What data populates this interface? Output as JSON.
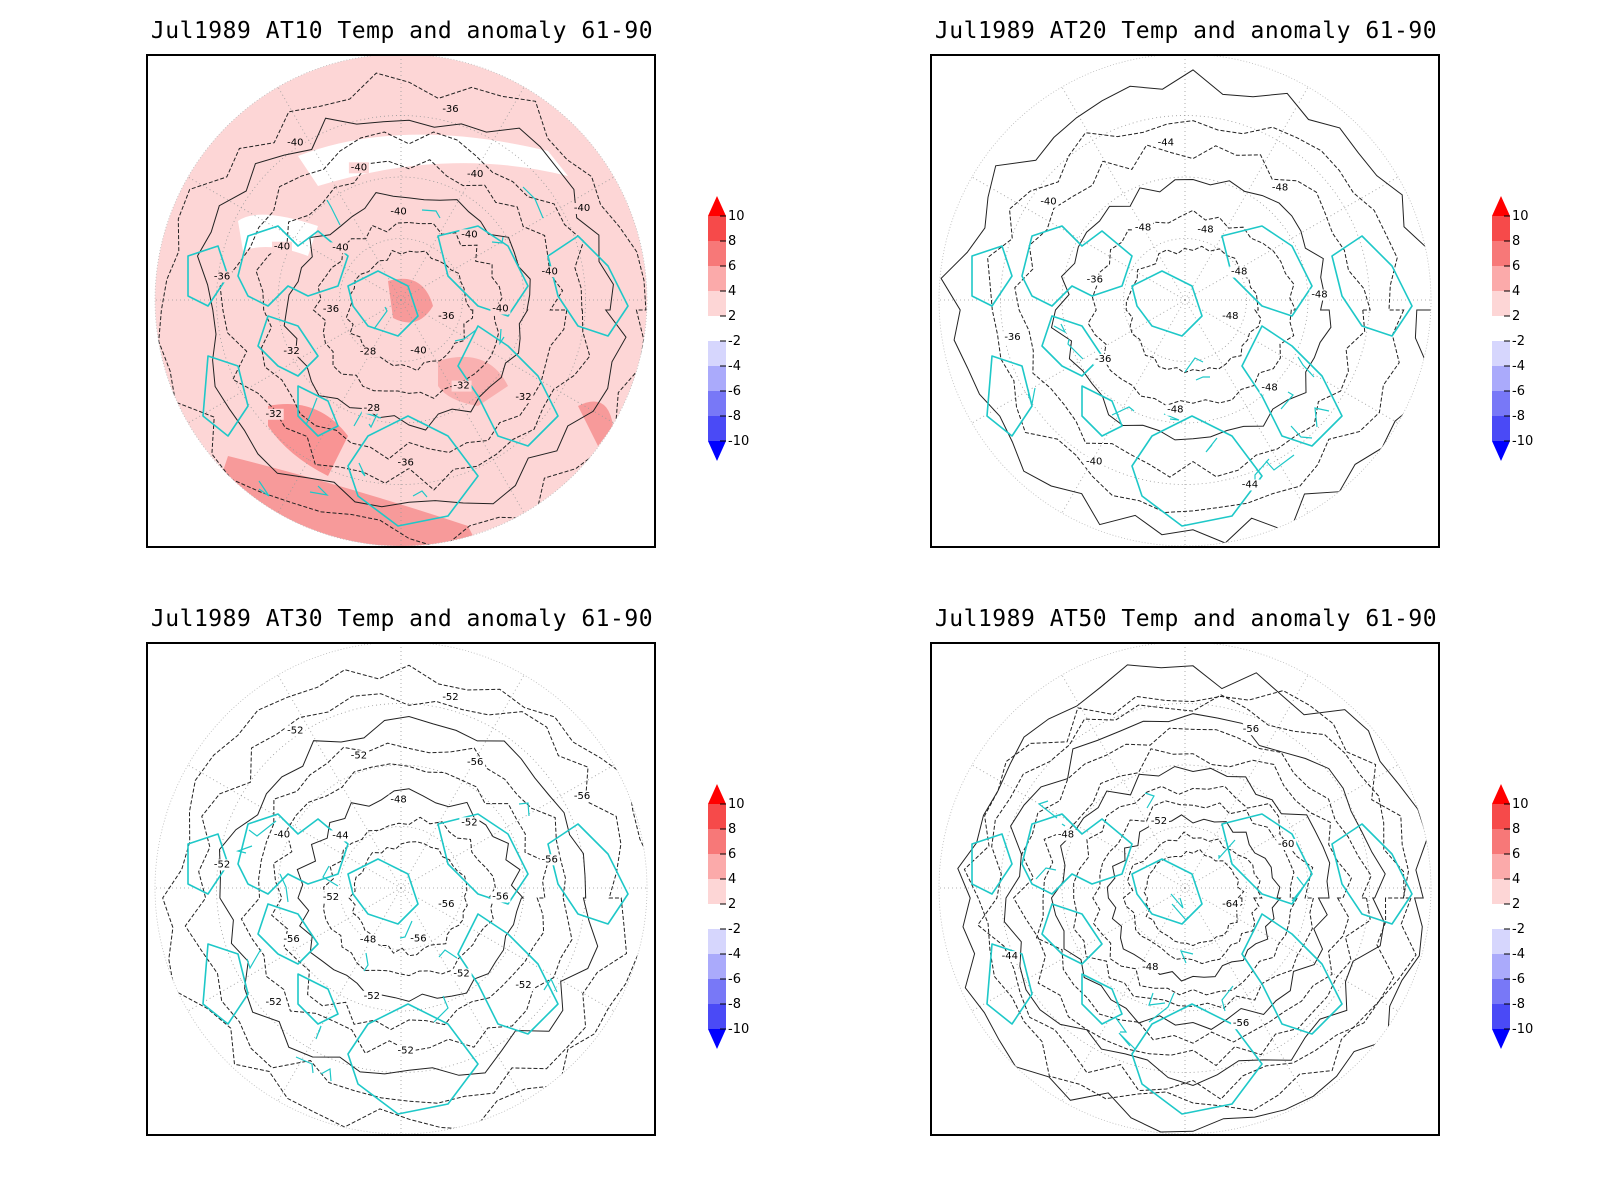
{
  "panels": [
    {
      "title": "Jul1989 AT10 Temp and anomaly 61-90",
      "anomaly": true,
      "contour_labels": [
        "-36",
        "-32",
        "-32",
        "-40",
        "-36",
        "-28",
        "-28",
        "-32",
        "-32",
        "-36",
        "-36",
        "-40",
        "-40",
        "-40",
        "-40",
        "-40",
        "-36",
        "-40",
        "-40",
        "-40",
        "-40",
        "-40"
      ]
    },
    {
      "title": "Jul1989 AT20 Temp and anomaly 61-90",
      "anomaly": false,
      "contour_labels": [
        "-48",
        "-48",
        "-44",
        "-48",
        "-40",
        "-36",
        "-36",
        "-36",
        "-40",
        "-48",
        "-44",
        "-48",
        "-48",
        "-48",
        "-48"
      ]
    },
    {
      "title": "Jul1989 AT30 Temp and anomaly 61-90",
      "anomaly": false,
      "contour_labels": [
        "-56",
        "-52",
        "-52",
        "-56",
        "-52",
        "-52",
        "-48",
        "-52",
        "-56",
        "-52",
        "-52",
        "-40",
        "-44",
        "-52",
        "-52",
        "-48",
        "-52",
        "-56",
        "-52",
        "-56",
        "-56",
        "-56"
      ]
    },
    {
      "title": "Jul1989 AT50 Temp and anomaly 61-90",
      "anomaly": false,
      "contour_labels": [
        "-64",
        "-56",
        "-48",
        "-44",
        "-48",
        "-52",
        "-56",
        "-60"
      ]
    }
  ],
  "colorbar": {
    "ticks": [
      "10",
      "8",
      "6",
      "4",
      "2",
      "-2",
      "-4",
      "-6",
      "-8",
      "-10"
    ],
    "colors": [
      "#ff0000",
      "#f64a4a",
      "#f77878",
      "#fbaaaa",
      "#fdd6d6",
      "#ffffff",
      "#d6d6fd",
      "#aaaafb",
      "#7878f7",
      "#4a4af6",
      "#0000ff"
    ],
    "coast_color": "#1ec8c8"
  }
}
